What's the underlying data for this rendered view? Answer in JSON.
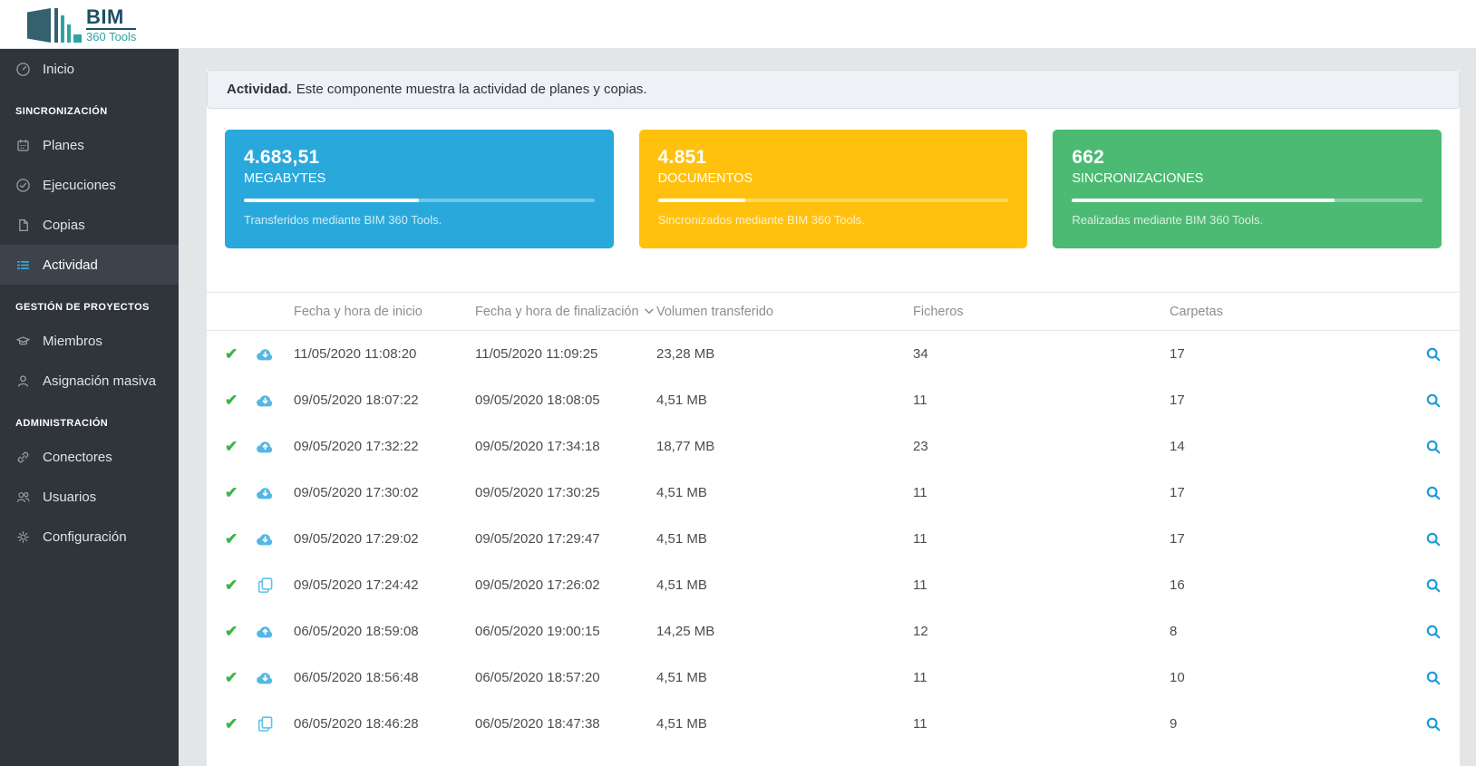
{
  "brand": {
    "name_top": "BIM",
    "name_bottom": "360 Tools"
  },
  "sidebar": {
    "sections": [
      {
        "label": "",
        "items": [
          {
            "label": "Inicio",
            "icon": "gauge-icon",
            "active": false
          }
        ]
      },
      {
        "label": "SINCRONIZACIÓN",
        "items": [
          {
            "label": "Planes",
            "icon": "calendar-icon",
            "active": false
          },
          {
            "label": "Ejecuciones",
            "icon": "check-circle-icon",
            "active": false
          },
          {
            "label": "Copias",
            "icon": "file-icon",
            "active": false
          },
          {
            "label": "Actividad",
            "icon": "list-icon",
            "active": true
          }
        ]
      },
      {
        "label": "GESTIÓN DE PROYECTOS",
        "items": [
          {
            "label": "Miembros",
            "icon": "graduation-cap-icon",
            "active": false
          },
          {
            "label": "Asignación masiva",
            "icon": "person-icon",
            "active": false
          }
        ]
      },
      {
        "label": "ADMINISTRACIÓN",
        "items": [
          {
            "label": "Conectores",
            "icon": "link-icon",
            "active": false
          },
          {
            "label": "Usuarios",
            "icon": "users-icon",
            "active": false
          },
          {
            "label": "Configuración",
            "icon": "gear-icon",
            "active": false
          }
        ]
      }
    ]
  },
  "alert": {
    "title": "Actividad.",
    "text": "Este componente muestra la actividad de planes y copias."
  },
  "stat_cards": [
    {
      "value": "4.683,51",
      "label": "MEGABYTES",
      "description": "Transferidos mediante BIM 360 Tools.",
      "color": "#29a9db",
      "progress": 50
    },
    {
      "value": "4.851",
      "label": "DOCUMENTOS",
      "description": "Sincronizados mediante BIM 360 Tools.",
      "color": "#ffc10d",
      "progress": 25
    },
    {
      "value": "662",
      "label": "SINCRONIZACIONES",
      "description": "Realizadas mediante BIM 360 Tools.",
      "color": "#4cba73",
      "progress": 75
    }
  ],
  "table": {
    "columns": {
      "inicio": "Fecha y hora de inicio",
      "fin": "Fecha y hora de finalización",
      "volumen": "Volumen transferido",
      "ficheros": "Ficheros",
      "carpetas": "Carpetas"
    },
    "sorted_column": "Fecha y hora de finalización",
    "sort_direction": "desc",
    "status_icon": "check-icon",
    "status_check": "✔",
    "rows": [
      {
        "status": "ok",
        "type_icon": "cloud-download-icon",
        "inicio": "11/05/2020 11:08:20",
        "fin": "11/05/2020 11:09:25",
        "volumen": "23,28 MB",
        "ficheros": "34",
        "carpetas": "17"
      },
      {
        "status": "ok",
        "type_icon": "cloud-download-icon",
        "inicio": "09/05/2020 18:07:22",
        "fin": "09/05/2020 18:08:05",
        "volumen": "4,51 MB",
        "ficheros": "11",
        "carpetas": "17"
      },
      {
        "status": "ok",
        "type_icon": "cloud-upload-icon",
        "inicio": "09/05/2020 17:32:22",
        "fin": "09/05/2020 17:34:18",
        "volumen": "18,77 MB",
        "ficheros": "23",
        "carpetas": "14"
      },
      {
        "status": "ok",
        "type_icon": "cloud-download-icon",
        "inicio": "09/05/2020 17:30:02",
        "fin": "09/05/2020 17:30:25",
        "volumen": "4,51 MB",
        "ficheros": "11",
        "carpetas": "17"
      },
      {
        "status": "ok",
        "type_icon": "cloud-download-icon",
        "inicio": "09/05/2020 17:29:02",
        "fin": "09/05/2020 17:29:47",
        "volumen": "4,51 MB",
        "ficheros": "11",
        "carpetas": "17"
      },
      {
        "status": "ok",
        "type_icon": "copy-icon",
        "inicio": "09/05/2020 17:24:42",
        "fin": "09/05/2020 17:26:02",
        "volumen": "4,51 MB",
        "ficheros": "11",
        "carpetas": "16"
      },
      {
        "status": "ok",
        "type_icon": "cloud-upload-icon",
        "inicio": "06/05/2020 18:59:08",
        "fin": "06/05/2020 19:00:15",
        "volumen": "14,25 MB",
        "ficheros": "12",
        "carpetas": "8"
      },
      {
        "status": "ok",
        "type_icon": "cloud-download-icon",
        "inicio": "06/05/2020 18:56:48",
        "fin": "06/05/2020 18:57:20",
        "volumen": "4,51 MB",
        "ficheros": "11",
        "carpetas": "10"
      },
      {
        "status": "ok",
        "type_icon": "copy-icon",
        "inicio": "06/05/2020 18:46:28",
        "fin": "06/05/2020 18:47:38",
        "volumen": "4,51 MB",
        "ficheros": "11",
        "carpetas": "9"
      }
    ]
  }
}
